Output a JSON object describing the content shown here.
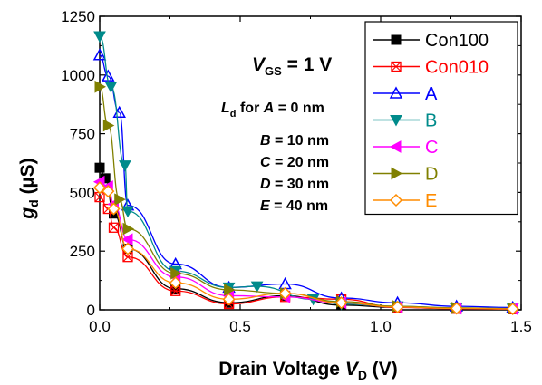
{
  "chart_data": {
    "type": "line",
    "xlabel": {
      "main": "Drain Voltage ",
      "sym": "V",
      "sub": "D",
      "unit": " (V)"
    },
    "ylabel": {
      "sym": "g",
      "sub": "d",
      "unit": " (µS)"
    },
    "xlim": [
      0,
      1.5
    ],
    "ylim": [
      0,
      1250
    ],
    "xticks": [
      "0.0",
      "0.5",
      "1.0",
      "1.5"
    ],
    "yticks": [
      "0",
      "250",
      "500",
      "750",
      "1000",
      "1250"
    ],
    "grid": false,
    "legend_position": "top-right",
    "annotations": {
      "vgs": {
        "sym": "V",
        "sub": "GS",
        "rest": " = 1 V"
      },
      "ld_label": {
        "sym": "L",
        "sub": "d",
        "rest1": " for ",
        "sym2": "A",
        "rest2": " = 0 nm"
      },
      "lines": [
        {
          "sym": "B",
          "rest": " = 10 nm"
        },
        {
          "sym": "C",
          "rest": " = 20 nm"
        },
        {
          "sym": "D",
          "rest": " = 30 nm"
        },
        {
          "sym": "E",
          "rest": " = 40 nm"
        }
      ]
    },
    "series": [
      {
        "name": "Con100",
        "color": "#000000",
        "marker": "square-filled",
        "points": [
          [
            0.0,
            605
          ],
          [
            0.02,
            560
          ],
          [
            0.05,
            410
          ],
          [
            0.1,
            260
          ],
          [
            0.27,
            90
          ],
          [
            0.46,
            30
          ],
          [
            0.66,
            60
          ],
          [
            0.86,
            20
          ],
          [
            1.06,
            10
          ],
          [
            1.27,
            5
          ],
          [
            1.47,
            3
          ]
        ]
      },
      {
        "name": "Con010",
        "color": "#ff0000",
        "marker": "square-x",
        "points": [
          [
            0.0,
            480
          ],
          [
            0.03,
            430
          ],
          [
            0.05,
            350
          ],
          [
            0.1,
            225
          ],
          [
            0.27,
            80
          ],
          [
            0.46,
            25
          ],
          [
            0.66,
            55
          ],
          [
            0.86,
            45
          ],
          [
            1.06,
            10
          ],
          [
            1.27,
            5
          ],
          [
            1.47,
            3
          ]
        ]
      },
      {
        "name": "A",
        "color": "#0000ff",
        "marker": "triangle-up",
        "points": [
          [
            0.0,
            1085
          ],
          [
            0.03,
            995
          ],
          [
            0.07,
            840
          ],
          [
            0.1,
            445
          ],
          [
            0.27,
            195
          ],
          [
            0.46,
            95
          ],
          [
            0.66,
            110
          ],
          [
            0.86,
            50
          ],
          [
            1.06,
            30
          ],
          [
            1.27,
            15
          ],
          [
            1.47,
            10
          ]
        ]
      },
      {
        "name": "B",
        "color": "#008b8b",
        "marker": "triangle-down",
        "points": [
          [
            0.0,
            1165
          ],
          [
            0.04,
            950
          ],
          [
            0.09,
            615
          ],
          [
            0.1,
            420
          ],
          [
            0.27,
            165
          ],
          [
            0.46,
            95
          ],
          [
            0.56,
            100
          ],
          [
            0.76,
            45
          ],
          [
            0.86,
            25
          ],
          [
            1.06,
            15
          ],
          [
            1.27,
            8
          ],
          [
            1.47,
            5
          ]
        ]
      },
      {
        "name": "C",
        "color": "#ff00ff",
        "marker": "triangle-left",
        "points": [
          [
            0.0,
            545
          ],
          [
            0.03,
            525
          ],
          [
            0.05,
            450
          ],
          [
            0.1,
            300
          ],
          [
            0.27,
            140
          ],
          [
            0.46,
            60
          ],
          [
            0.66,
            55
          ],
          [
            0.86,
            30
          ],
          [
            1.06,
            12
          ],
          [
            1.27,
            6
          ],
          [
            1.47,
            4
          ]
        ]
      },
      {
        "name": "D",
        "color": "#808000",
        "marker": "triangle-right",
        "points": [
          [
            0.0,
            950
          ],
          [
            0.03,
            785
          ],
          [
            0.07,
            470
          ],
          [
            0.1,
            345
          ],
          [
            0.27,
            155
          ],
          [
            0.46,
            85
          ],
          [
            0.66,
            70
          ],
          [
            0.86,
            35
          ],
          [
            1.06,
            15
          ],
          [
            1.27,
            8
          ],
          [
            1.47,
            5
          ]
        ]
      },
      {
        "name": "E",
        "color": "#ff8c00",
        "marker": "diamond",
        "points": [
          [
            0.0,
            520
          ],
          [
            0.03,
            505
          ],
          [
            0.05,
            430
          ],
          [
            0.1,
            260
          ],
          [
            0.27,
            115
          ],
          [
            0.46,
            45
          ],
          [
            0.66,
            70
          ],
          [
            0.86,
            30
          ],
          [
            1.06,
            12
          ],
          [
            1.27,
            6
          ],
          [
            1.47,
            4
          ]
        ]
      }
    ]
  }
}
